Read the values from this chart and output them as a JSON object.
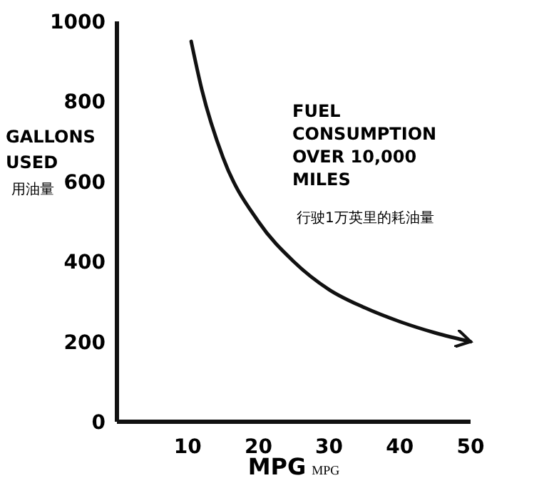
{
  "chart_data": {
    "type": "line",
    "ylabel": "GALLONS USED 用油量",
    "xlabel": "MPG MPG",
    "x": [
      10.5,
      12,
      15,
      20,
      25,
      30,
      35,
      40,
      45,
      50
    ],
    "values": [
      950,
      830,
      660,
      500,
      400,
      330,
      285,
      250,
      222,
      200
    ],
    "color": "#111111",
    "xlim": [
      0,
      50
    ],
    "xticks": [
      10,
      20,
      30,
      40,
      50
    ],
    "ylim": [
      0,
      1000
    ],
    "yticks": [
      0,
      200,
      400,
      600,
      800,
      1000
    ],
    "grid": false,
    "marker": "none",
    "line_style": "solid",
    "annotations": [
      "FUEL CONSUMPTION OVER 10,000 MILES",
      "行驶1万英里的耗油量"
    ]
  }
}
